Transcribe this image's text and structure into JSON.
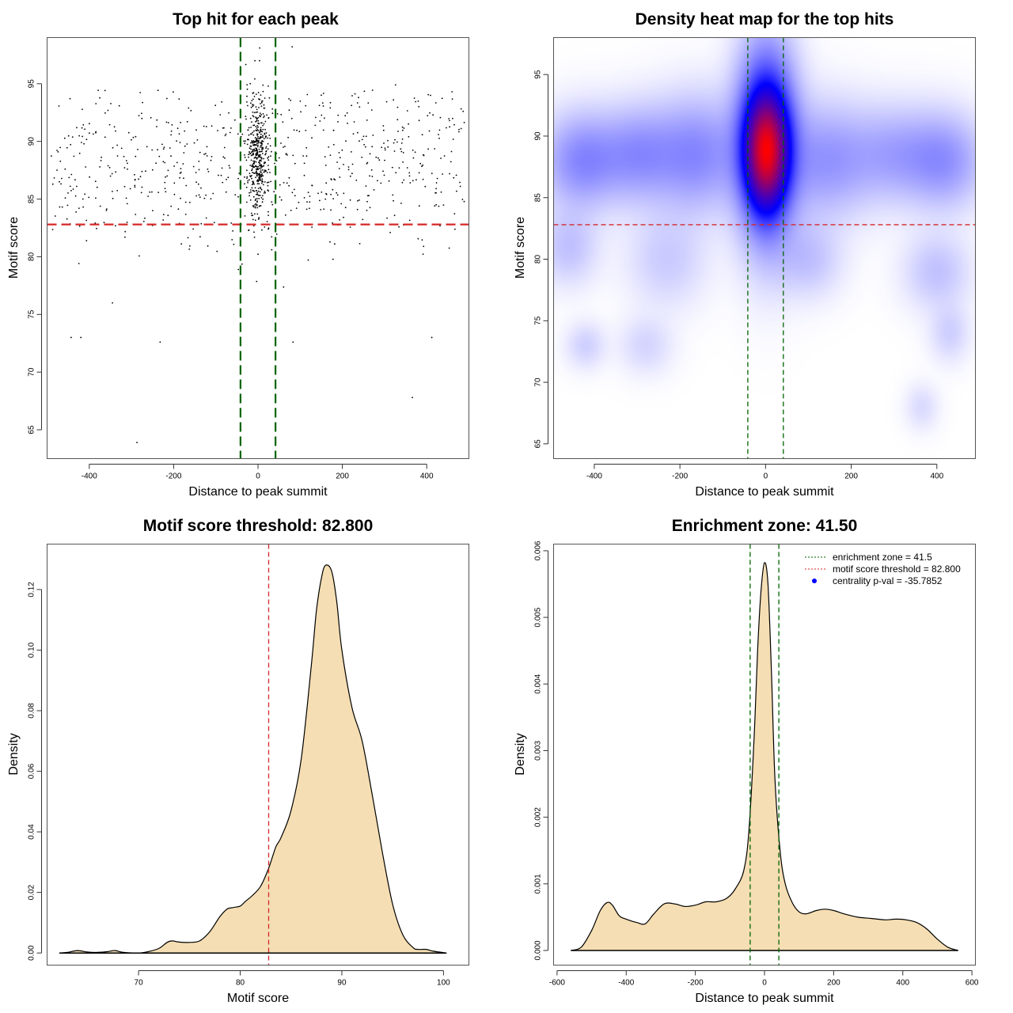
{
  "chart_data": [
    {
      "type": "scatter",
      "title": "Top hit for each peak",
      "xlabel": "Distance to peak summit",
      "ylabel": "Motif score",
      "xlim": [
        -500,
        500
      ],
      "ylim": [
        62.5,
        99
      ],
      "xticks": [
        -400,
        -200,
        0,
        200,
        400
      ],
      "yticks": [
        65,
        70,
        75,
        80,
        85,
        90,
        95
      ],
      "point_color": "#000000",
      "generated_points": {
        "n": 1100,
        "note": "approximate distribution: dense column around distance 0 (scores 82-97), sparse uniform background across -490..490 with scores 72-94",
        "seed": 7
      },
      "outliers": [
        {
          "x": -287,
          "y": 63.9
        },
        {
          "x": 366,
          "y": 67.8
        },
        {
          "x": -345,
          "y": 76.0
        },
        {
          "x": -420,
          "y": 73.0
        },
        {
          "x": -443,
          "y": 73.0
        },
        {
          "x": 412,
          "y": 73.0
        },
        {
          "x": 83,
          "y": 72.6
        },
        {
          "x": -232,
          "y": 72.6
        },
        {
          "x": 81,
          "y": 98.2
        },
        {
          "x": 4,
          "y": 98.1
        },
        {
          "x": 326,
          "y": 94.9
        }
      ],
      "hlines": [
        {
          "y": 82.8,
          "color": "#d62728",
          "style": "dashed"
        }
      ],
      "vlines": [
        {
          "x": -41.5,
          "color": "#006400",
          "style": "dashed"
        },
        {
          "x": 41.5,
          "color": "#006400",
          "style": "dashed"
        }
      ]
    },
    {
      "type": "heatmap",
      "title": "Density heat map for the top hits",
      "xlabel": "Distance to peak summit",
      "ylabel": "Motif score",
      "xlim": [
        -495,
        490
      ],
      "ylim": [
        63.8,
        98
      ],
      "xticks": [
        -400,
        -200,
        0,
        200,
        400
      ],
      "yticks": [
        65,
        70,
        75,
        80,
        85,
        90,
        95
      ],
      "colorscale": [
        "#ffffff",
        "#0000ff",
        "#ff0000"
      ],
      "blobs": [
        {
          "x": 2,
          "y": 88.8,
          "sx": 28,
          "sy": 2.6,
          "w": 1.0
        },
        {
          "x": 2,
          "y": 89.5,
          "sx": 45,
          "sy": 5.0,
          "w": 0.35
        },
        {
          "x": -430,
          "y": 88,
          "sx": 60,
          "sy": 2.5,
          "w": 0.12
        },
        {
          "x": -300,
          "y": 88.5,
          "sx": 60,
          "sy": 2.5,
          "w": 0.1
        },
        {
          "x": -160,
          "y": 88.5,
          "sx": 70,
          "sy": 3,
          "w": 0.12
        },
        {
          "x": 140,
          "y": 88,
          "sx": 70,
          "sy": 3,
          "w": 0.1
        },
        {
          "x": 300,
          "y": 88.5,
          "sx": 70,
          "sy": 2.5,
          "w": 0.08
        },
        {
          "x": 420,
          "y": 88,
          "sx": 60,
          "sy": 2.5,
          "w": 0.1
        },
        {
          "x": -460,
          "y": 81,
          "sx": 45,
          "sy": 2,
          "w": 0.05
        },
        {
          "x": -230,
          "y": 80,
          "sx": 60,
          "sy": 2.5,
          "w": 0.04
        },
        {
          "x": 100,
          "y": 80,
          "sx": 50,
          "sy": 2,
          "w": 0.05
        },
        {
          "x": 400,
          "y": 79,
          "sx": 50,
          "sy": 2,
          "w": 0.05
        },
        {
          "x": -420,
          "y": 73,
          "sx": 30,
          "sy": 1.2,
          "w": 0.035
        },
        {
          "x": -280,
          "y": 73,
          "sx": 40,
          "sy": 1.5,
          "w": 0.03
        },
        {
          "x": 430,
          "y": 74,
          "sx": 30,
          "sy": 1.5,
          "w": 0.035
        },
        {
          "x": 365,
          "y": 68,
          "sx": 25,
          "sy": 1.2,
          "w": 0.025
        }
      ],
      "hlines": [
        {
          "y": 82.8,
          "color": "#d62728",
          "style": "dashed"
        }
      ],
      "vlines": [
        {
          "x": -41.5,
          "color": "#006400",
          "style": "dashed"
        },
        {
          "x": 41.5,
          "color": "#006400",
          "style": "dashed"
        }
      ]
    },
    {
      "type": "area",
      "title": "Motif score threshold: 82.800",
      "xlabel": "Motif score",
      "ylabel": "Density",
      "xlim": [
        61,
        102.5
      ],
      "ylim": [
        -0.004,
        0.135
      ],
      "xticks": [
        70,
        80,
        90,
        100
      ],
      "yticks": [
        0.0,
        0.02,
        0.04,
        0.06,
        0.08,
        0.1,
        0.12
      ],
      "ytick_labels": [
        "0.00",
        "0.02",
        "0.04",
        "0.06",
        "0.08",
        "0.10",
        "0.12"
      ],
      "fill_color": "#f5deb3",
      "line_color": "#000000",
      "x": [
        62.2,
        63,
        64,
        65,
        66,
        67,
        67.7,
        68.5,
        70,
        71,
        72,
        72.8,
        73.3,
        74,
        75,
        76,
        77,
        78,
        78.7,
        79.3,
        80,
        80.5,
        81.2,
        82,
        82.8,
        83.5,
        84,
        85,
        86,
        87,
        87.5,
        88,
        88.4,
        89,
        89.5,
        90,
        91,
        92,
        93,
        94,
        95,
        96,
        97,
        97.5,
        98.3,
        99,
        100.3
      ],
      "y": [
        0.0,
        0.0002,
        0.0008,
        0.0003,
        0.0002,
        0.0005,
        0.0008,
        0.0002,
        0.0,
        0.0005,
        0.0015,
        0.0035,
        0.004,
        0.0036,
        0.0035,
        0.004,
        0.007,
        0.012,
        0.0145,
        0.015,
        0.0155,
        0.017,
        0.019,
        0.022,
        0.028,
        0.035,
        0.038,
        0.047,
        0.064,
        0.095,
        0.113,
        0.124,
        0.128,
        0.126,
        0.116,
        0.1,
        0.081,
        0.07,
        0.052,
        0.033,
        0.016,
        0.006,
        0.0018,
        0.0012,
        0.0012,
        0.0006,
        0.0
      ],
      "vlines": [
        {
          "x": 82.8,
          "color": "#d62728",
          "style": "dashed"
        }
      ]
    },
    {
      "type": "area",
      "title": "Enrichment zone: 41.50",
      "xlabel": "Distance to peak summit",
      "ylabel": "Density",
      "xlim": [
        -610,
        610
      ],
      "ylim": [
        -0.00022,
        0.0061
      ],
      "xticks": [
        -600,
        -400,
        -200,
        0,
        200,
        400,
        600
      ],
      "yticks": [
        0.0,
        0.001,
        0.002,
        0.003,
        0.004,
        0.005,
        0.006
      ],
      "ytick_labels": [
        "0.000",
        "0.001",
        "0.002",
        "0.003",
        "0.004",
        "0.005",
        "0.006"
      ],
      "fill_color": "#f5deb3",
      "line_color": "#000000",
      "x": [
        -560,
        -530,
        -500,
        -475,
        -455,
        -440,
        -420,
        -400,
        -370,
        -345,
        -320,
        -290,
        -260,
        -230,
        -200,
        -170,
        -140,
        -110,
        -85,
        -60,
        -45,
        -30,
        -20,
        -10,
        0,
        10,
        20,
        30,
        45,
        60,
        80,
        100,
        120,
        150,
        175,
        200,
        230,
        270,
        310,
        350,
        380,
        410,
        440,
        470,
        500,
        530,
        560
      ],
      "y": [
        0.0,
        5e-05,
        0.0003,
        0.0006,
        0.00072,
        0.00068,
        0.00052,
        0.00047,
        0.00042,
        0.0004,
        0.00055,
        0.0007,
        0.0007,
        0.00066,
        0.00068,
        0.00073,
        0.00073,
        0.00078,
        0.00092,
        0.0012,
        0.0018,
        0.0032,
        0.0045,
        0.0054,
        0.00582,
        0.0055,
        0.0042,
        0.0026,
        0.0015,
        0.001,
        0.00072,
        0.00058,
        0.00055,
        0.0006,
        0.00062,
        0.0006,
        0.00055,
        0.0005,
        0.00048,
        0.00046,
        0.00047,
        0.00046,
        0.00042,
        0.00032,
        0.00017,
        5e-05,
        0.0
      ],
      "vlines": [
        {
          "x": -41.5,
          "color": "#006400",
          "style": "dashed"
        },
        {
          "x": 41.5,
          "color": "#006400",
          "style": "dashed"
        }
      ],
      "legend": {
        "placement": "top-right",
        "entries": [
          {
            "label": "enrichment zone = 41.5",
            "color": "#006400",
            "kind": "dotted-line"
          },
          {
            "label": "motif score threshold = 82.800",
            "color": "#d62728",
            "kind": "dotted-line"
          },
          {
            "label": "centrality p-val = -35.7852",
            "color": "#0000ff",
            "kind": "point"
          }
        ]
      }
    }
  ]
}
